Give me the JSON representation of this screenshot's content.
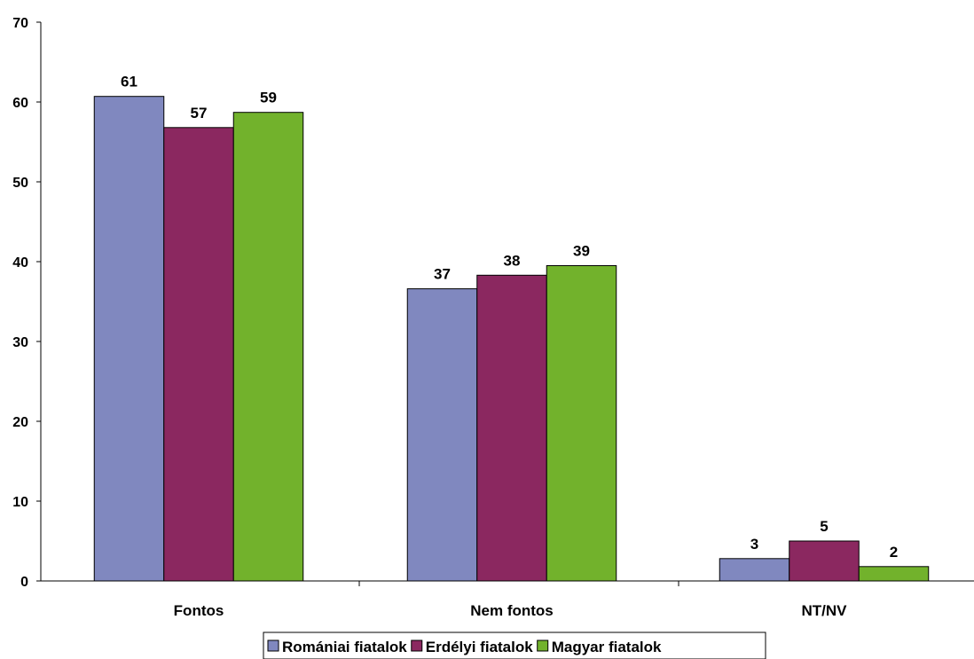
{
  "chart_data": {
    "type": "bar",
    "categories": [
      "Fontos",
      "Nem fontos",
      "NT/NV"
    ],
    "series": [
      {
        "name": "Romániai fiatalok",
        "color": "#8088BF",
        "values": [
          60.7,
          36.6,
          2.8
        ],
        "labels": [
          "61",
          "37",
          "3"
        ]
      },
      {
        "name": "Erdélyi fiatalok",
        "color": "#8B2860",
        "values": [
          56.8,
          38.3,
          5.0
        ],
        "labels": [
          "57",
          "38",
          "5"
        ]
      },
      {
        "name": "Magyar fiatalok",
        "color": "#72B22C",
        "values": [
          58.7,
          39.5,
          1.8
        ],
        "labels": [
          "59",
          "39",
          "2"
        ]
      }
    ],
    "yticks": [
      "0",
      "10",
      "20",
      "30",
      "40",
      "50",
      "60",
      "70"
    ],
    "ylim": [
      0,
      70
    ],
    "grid": false,
    "legend_position": "bottom",
    "title": "",
    "xlabel": "",
    "ylabel": ""
  }
}
